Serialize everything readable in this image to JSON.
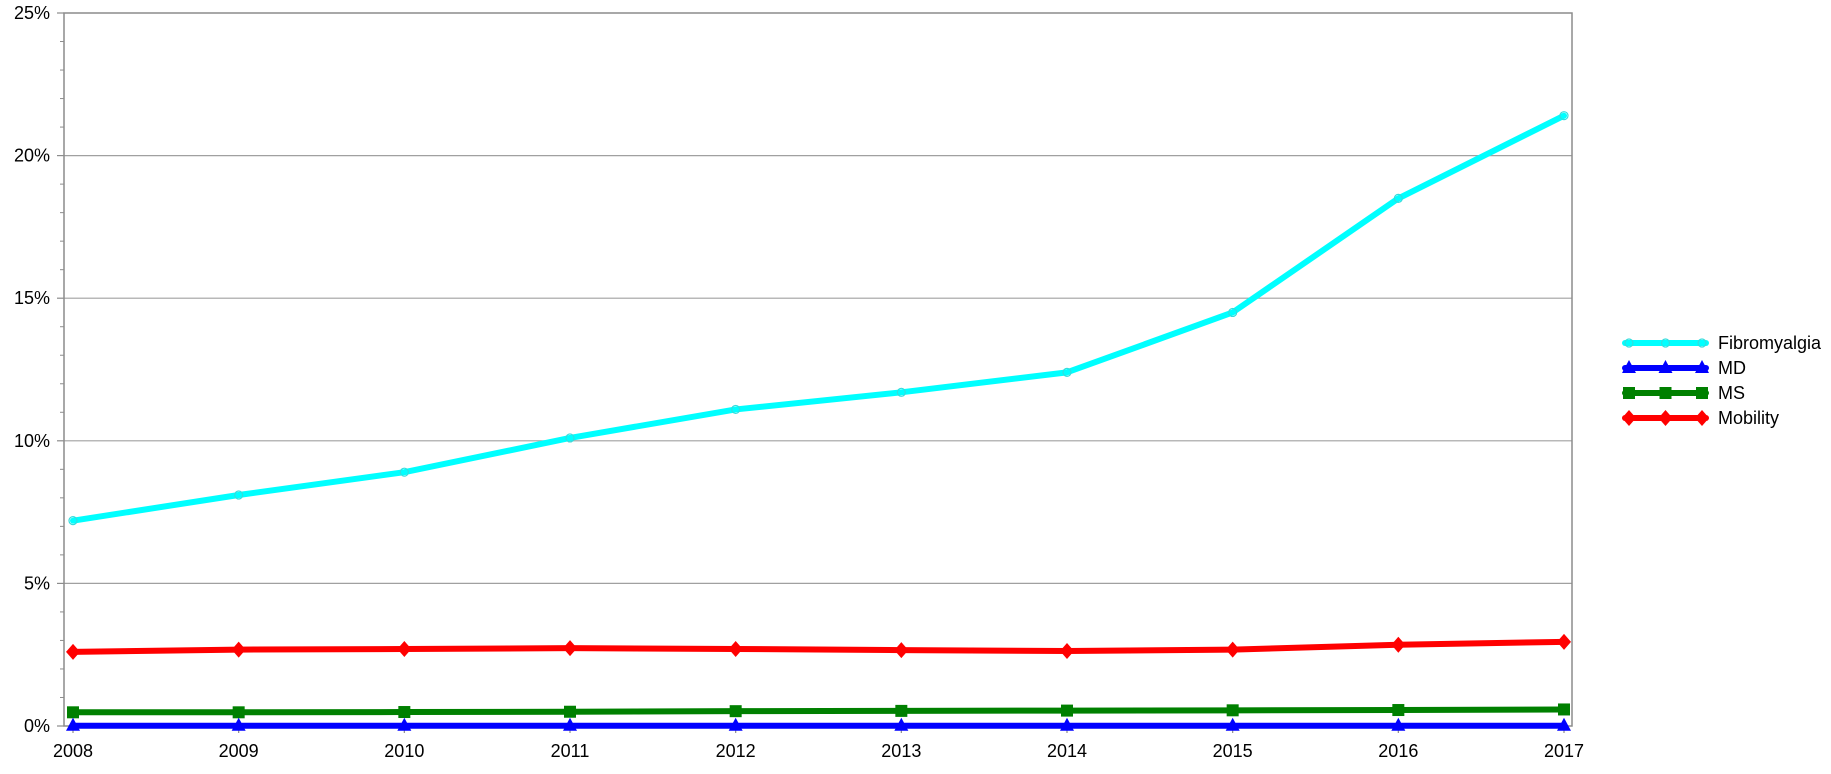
{
  "chart_data": {
    "type": "line",
    "title": "",
    "xlabel": "",
    "ylabel": "",
    "x": [
      2008,
      2009,
      2010,
      2011,
      2012,
      2013,
      2014,
      2015,
      2016,
      2017
    ],
    "x_tick_labels": [
      "2008",
      "2009",
      "2010",
      "2011",
      "2012",
      "2013",
      "2014",
      "2015",
      "2016",
      "2017"
    ],
    "ylim": [
      0,
      25
    ],
    "y_ticks": [
      0,
      5,
      10,
      15,
      20,
      25
    ],
    "y_tick_labels": [
      "0%",
      "5%",
      "10%",
      "15%",
      "20%",
      "25%"
    ],
    "y_unit": "%",
    "grid": "horizontal",
    "legend_position": "right",
    "series": [
      {
        "name": "Fibromyalgia",
        "color": "#00ffff",
        "marker": "open-circle",
        "values": [
          7.2,
          8.1,
          8.9,
          10.1,
          11.1,
          11.7,
          12.4,
          14.5,
          18.5,
          21.4
        ]
      },
      {
        "name": "MD",
        "color": "#0000ff",
        "marker": "triangle",
        "values": [
          0.01,
          0.01,
          0.01,
          0.01,
          0.01,
          0.01,
          0.01,
          0.01,
          0.01,
          0.01
        ]
      },
      {
        "name": "MS",
        "color": "#008000",
        "marker": "square",
        "values": [
          0.48,
          0.48,
          0.49,
          0.5,
          0.52,
          0.53,
          0.54,
          0.55,
          0.56,
          0.58
        ]
      },
      {
        "name": "Mobility",
        "color": "#ff0000",
        "marker": "diamond",
        "values": [
          2.6,
          2.68,
          2.7,
          2.73,
          2.7,
          2.66,
          2.63,
          2.68,
          2.85,
          2.95
        ]
      }
    ]
  }
}
